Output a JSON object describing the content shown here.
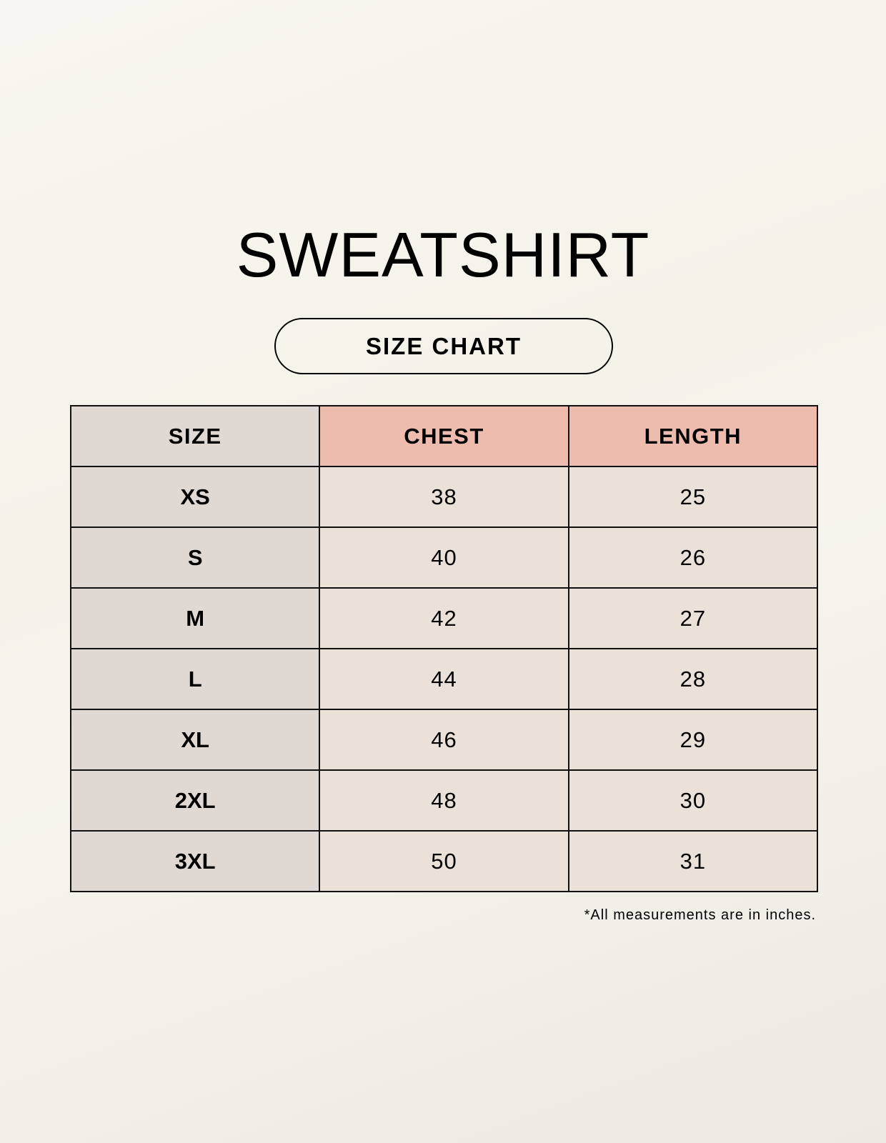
{
  "title": "SWEATSHIRT",
  "subtitle": "SIZE CHART",
  "colors": {
    "header_size_bg": "#e0d9d3",
    "header_measure_bg": "#edbcae",
    "cell_bg": "#eae2d8"
  },
  "table": {
    "headers": [
      "SIZE",
      "CHEST",
      "LENGTH"
    ],
    "rows": [
      [
        "XS",
        "38",
        "25"
      ],
      [
        "S",
        "40",
        "26"
      ],
      [
        "M",
        "42",
        "27"
      ],
      [
        "L",
        "44",
        "28"
      ],
      [
        "XL",
        "46",
        "29"
      ],
      [
        "2XL",
        "48",
        "30"
      ],
      [
        "3XL",
        "50",
        "31"
      ]
    ]
  },
  "note": "*All measurements are in inches."
}
